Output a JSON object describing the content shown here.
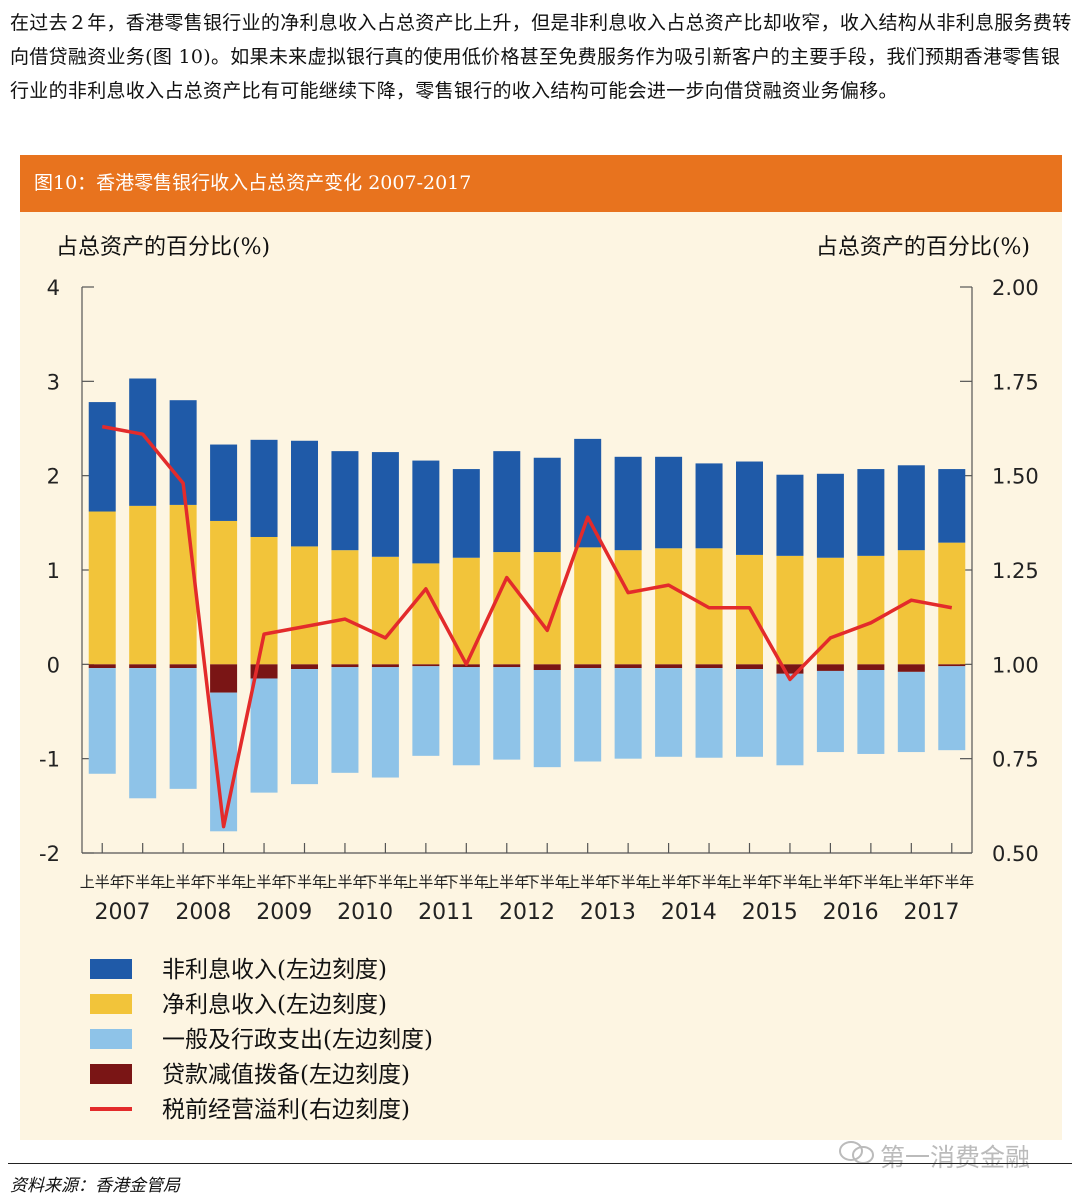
{
  "article": {
    "paragraph": "在过去２年，香港零售银行业的净利息收入占总资产比上升，但是非利息收入占总资产比却收窄，收入结构从非利息服务费转向借贷融资业务(图 10)。如果未来虚拟银行真的使用低价格甚至免费服务作为吸引新客户的主要手段，我们预期香港零售银行业的非利息收入占总资产比有可能继续下降，零售银行的收入结构可能会进一步向借贷融资业务偏移。"
  },
  "figure": {
    "title": "图10：香港零售银行收入占总资产变化 2007-2017",
    "source": "资料来源：香港金管局",
    "watermark": "第一消费金融"
  },
  "colors": {
    "header_bg": "#e8731e",
    "chart_bg": "#fdf5e2",
    "non_interest": "#1f5aa8",
    "net_interest": "#f2c43a",
    "expenses": "#8ec3e8",
    "impairment": "#7a1515",
    "profit": "#e32b2b"
  },
  "chart_data": {
    "type": "bar",
    "stacked": true,
    "left_axis": {
      "title": "占总资产的百分比(%)",
      "range": [
        -2,
        4
      ],
      "ticks": [
        "4",
        "3",
        "2",
        "1",
        "0",
        "-1",
        "-2"
      ]
    },
    "right_axis": {
      "title": "占总资产的百分比(%)",
      "range": [
        0.5,
        2.0
      ],
      "ticks": [
        "2.00",
        "1.75",
        "1.50",
        "1.25",
        "1.00",
        "0.75",
        "0.50"
      ]
    },
    "grid": false,
    "categories": [
      "上半年",
      "下半年",
      "上半年",
      "下半年",
      "上半年",
      "下半年",
      "上半年",
      "下半年",
      "上半年",
      "下半年",
      "上半年",
      "下半年",
      "上半年",
      "下半年",
      "上半年",
      "下半年",
      "上半年",
      "下半年",
      "上半年",
      "下半年",
      "上半年",
      "下半年"
    ],
    "years": [
      "2007",
      "2008",
      "2009",
      "2010",
      "2011",
      "2012",
      "2013",
      "2014",
      "2015",
      "2016",
      "2017"
    ],
    "series": [
      {
        "name": "非利息收入(左边刻度)",
        "key": "non_interest",
        "axis": "left",
        "values": [
          1.16,
          1.35,
          1.11,
          0.81,
          1.03,
          1.12,
          1.05,
          1.11,
          1.09,
          0.94,
          1.07,
          1.0,
          1.15,
          0.99,
          0.97,
          0.9,
          0.99,
          0.86,
          0.89,
          0.92,
          0.9,
          0.78
        ]
      },
      {
        "name": "净利息收入(左边刻度)",
        "key": "net_interest",
        "axis": "left",
        "values": [
          1.62,
          1.68,
          1.69,
          1.52,
          1.35,
          1.25,
          1.21,
          1.14,
          1.07,
          1.13,
          1.19,
          1.19,
          1.24,
          1.21,
          1.23,
          1.23,
          1.16,
          1.15,
          1.13,
          1.15,
          1.21,
          1.29
        ]
      },
      {
        "name": "一般及行政支出(左边刻度)",
        "key": "expenses",
        "axis": "left",
        "values": [
          -1.12,
          -1.38,
          -1.28,
          -1.47,
          -1.21,
          -1.22,
          -1.12,
          -1.17,
          -0.95,
          -1.04,
          -0.98,
          -1.03,
          -0.99,
          -0.96,
          -0.94,
          -0.95,
          -0.93,
          -0.97,
          -0.86,
          -0.89,
          -0.85,
          -0.89
        ]
      },
      {
        "name": "贷款减值拨备(左边刻度)",
        "key": "impairment",
        "axis": "left",
        "values": [
          -0.04,
          -0.04,
          -0.04,
          -0.3,
          -0.15,
          -0.05,
          -0.03,
          -0.03,
          -0.02,
          -0.03,
          -0.03,
          -0.06,
          -0.04,
          -0.04,
          -0.04,
          -0.04,
          -0.05,
          -0.1,
          -0.07,
          -0.06,
          -0.08,
          -0.02
        ]
      },
      {
        "name": "税前经营溢利(右边刻度)",
        "key": "profit",
        "axis": "right",
        "type": "line",
        "values": [
          1.63,
          1.61,
          1.48,
          0.57,
          1.08,
          1.1,
          1.12,
          1.07,
          1.2,
          1.0,
          1.23,
          1.09,
          1.39,
          1.19,
          1.21,
          1.15,
          1.15,
          0.96,
          1.07,
          1.11,
          1.17,
          1.15
        ]
      }
    ]
  }
}
